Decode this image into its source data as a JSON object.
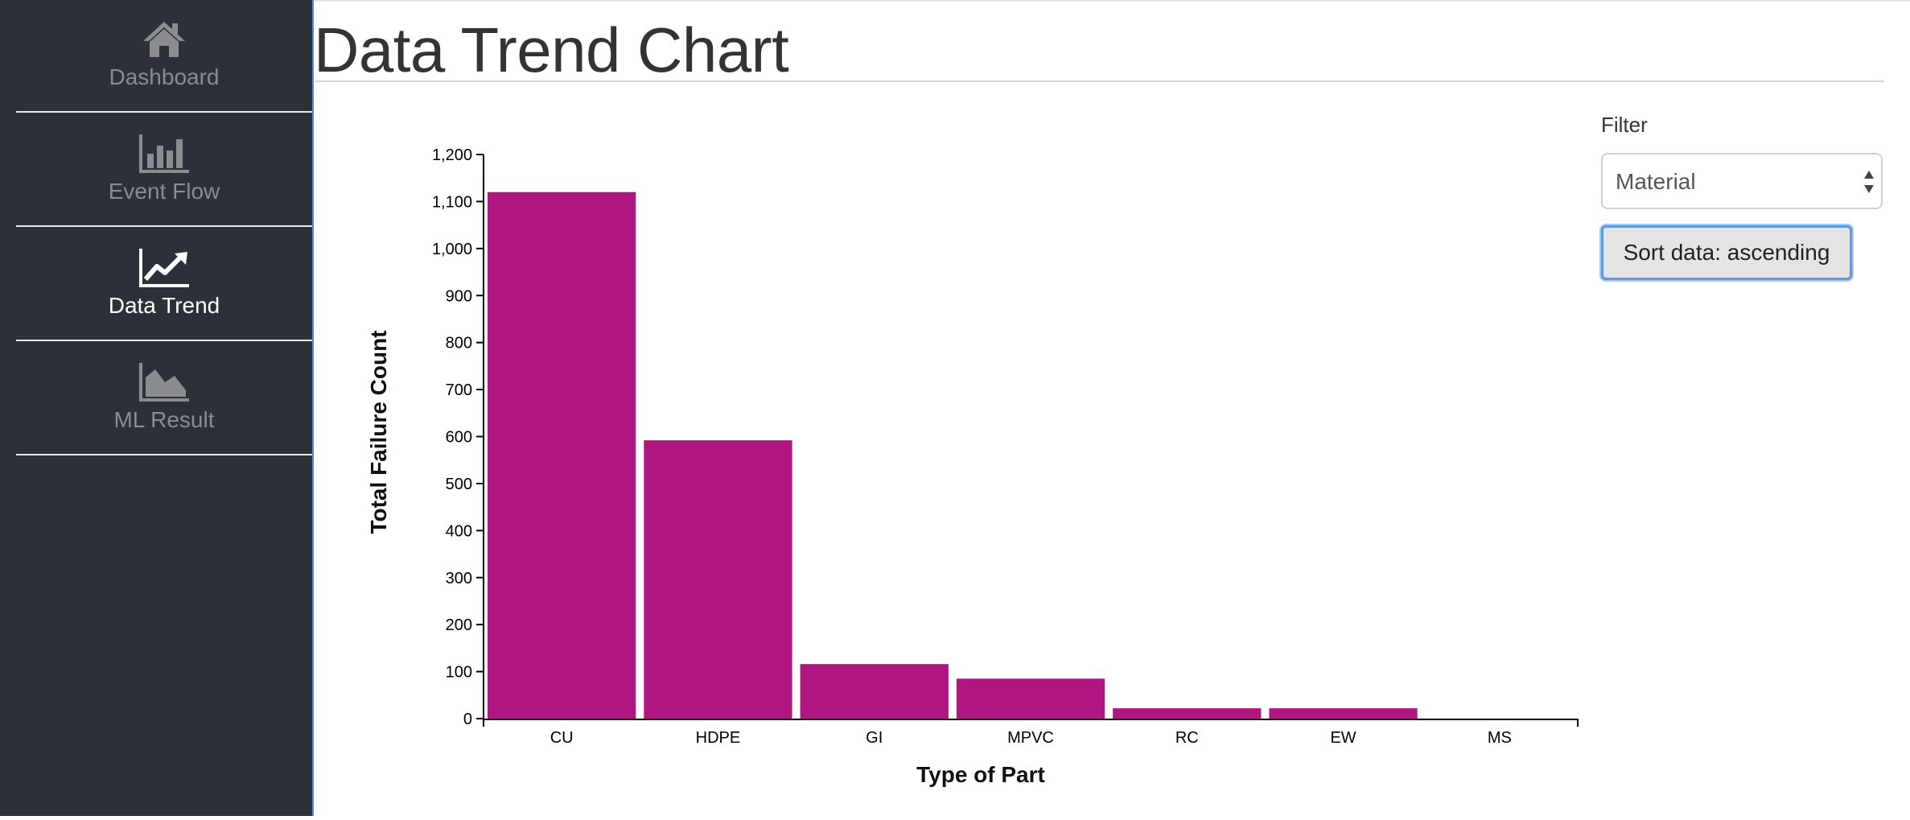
{
  "sidebar": {
    "items": [
      {
        "label": "Dashboard",
        "icon": "home-icon",
        "active": false
      },
      {
        "label": "Event Flow",
        "icon": "bar-chart-icon",
        "active": false
      },
      {
        "label": "Data Trend",
        "icon": "line-chart-icon",
        "active": true
      },
      {
        "label": "ML Result",
        "icon": "area-chart-icon",
        "active": false
      }
    ]
  },
  "header": {
    "title": "Data Trend Chart"
  },
  "filter": {
    "label": "Filter",
    "selected": "Material",
    "sort_label": "Sort data: ascending"
  },
  "colors": {
    "sidebar_bg": "#2b3039",
    "bar": "#b0167f",
    "accent": "#5b9be0"
  },
  "chart_data": {
    "type": "bar",
    "categories": [
      "CU",
      "HDPE",
      "GI",
      "MPVC",
      "RC",
      "EW",
      "MS"
    ],
    "values": [
      1120,
      592,
      116,
      85,
      22,
      22,
      0
    ],
    "xlabel": "Type of Part",
    "ylabel": "Total Failure Count",
    "ylim": [
      0,
      1200
    ],
    "yticks": [
      0,
      100,
      200,
      300,
      400,
      500,
      600,
      700,
      800,
      900,
      1000,
      1100,
      1200
    ],
    "ytick_labels": [
      "0",
      "100",
      "200",
      "300",
      "400",
      "500",
      "600",
      "700",
      "800",
      "900",
      "1,000",
      "1,100",
      "1,200"
    ],
    "grid": false,
    "legend": "none"
  }
}
